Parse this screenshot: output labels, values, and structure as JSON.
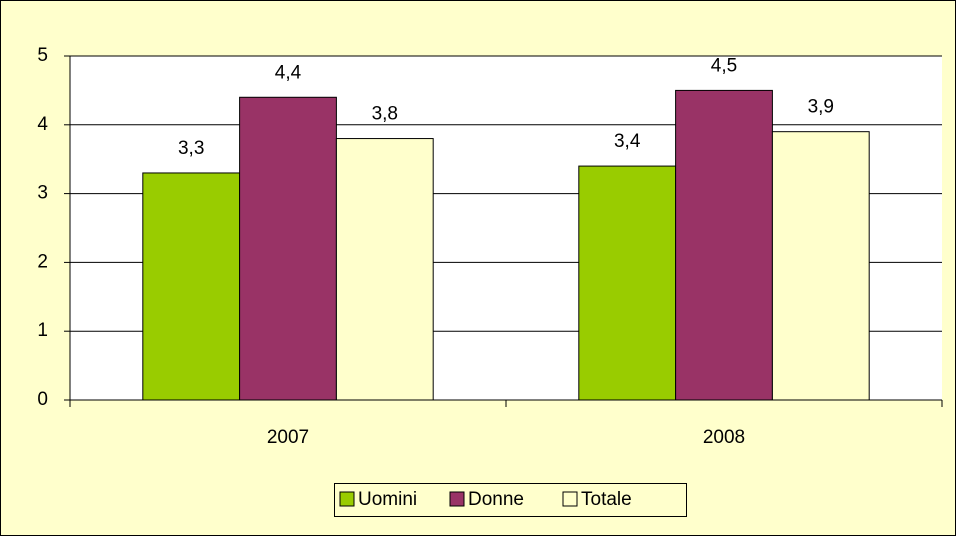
{
  "chart_data": {
    "type": "bar",
    "categories": [
      "2007",
      "2008"
    ],
    "series": [
      {
        "name": "Uomini",
        "color": "#99cc00",
        "values": [
          3.3,
          3.4
        ],
        "value_labels": [
          "3,3",
          "3,4"
        ]
      },
      {
        "name": "Donne",
        "color": "#993366",
        "values": [
          4.4,
          4.5
        ],
        "value_labels": [
          "4,4",
          "4,5"
        ]
      },
      {
        "name": "Totale",
        "color": "#ffffcc",
        "values": [
          3.8,
          3.9
        ],
        "value_labels": [
          "3,8",
          "3,9"
        ]
      }
    ],
    "ylim": [
      0,
      5
    ],
    "yticks": [
      0,
      1,
      2,
      3,
      4,
      5
    ],
    "grid": true,
    "legend": "bottom"
  }
}
